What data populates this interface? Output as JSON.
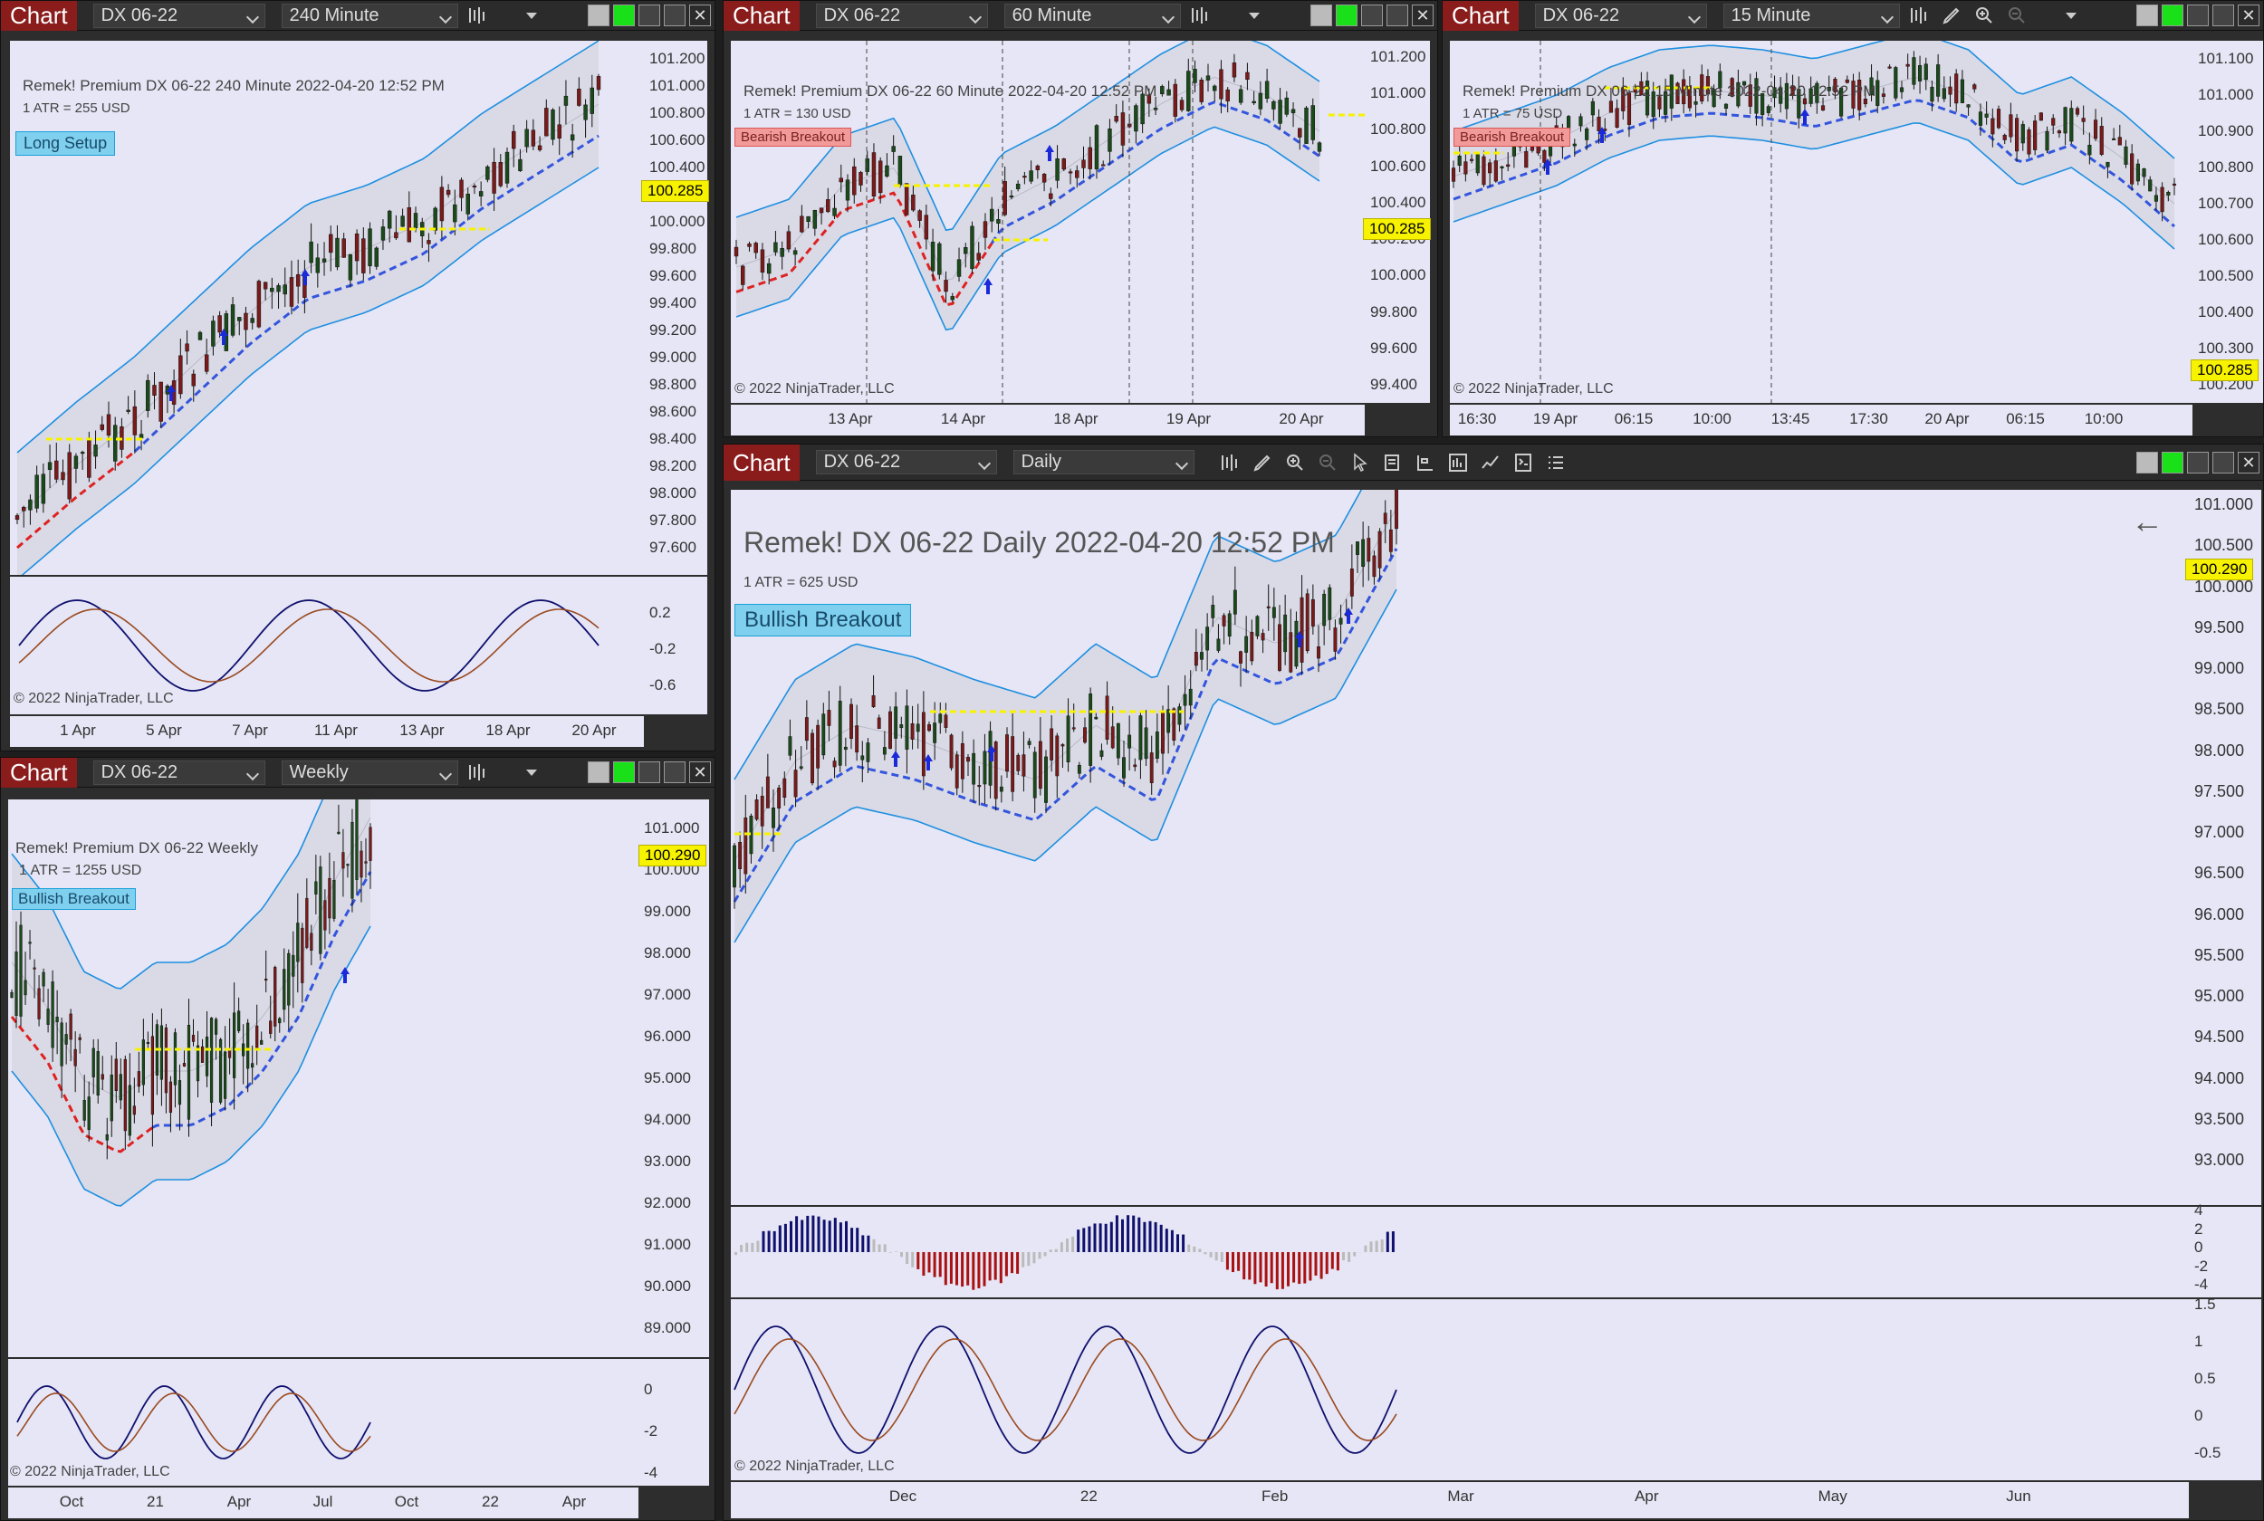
{
  "chart_label": "Chart",
  "copyright": "© 2022 NinjaTrader, LLC",
  "win240": {
    "instrument": "DX 06-22",
    "interval": "240 Minute",
    "header": "Remek!  Premium  DX 06-22  240 Minute  2022-04-20 12:52 PM",
    "atr": "1 ATR = 255 USD",
    "setup": "Long Setup",
    "price": "100.285",
    "yticks": [
      "101.200",
      "101.000",
      "100.800",
      "100.600",
      "100.400",
      "100.200",
      "100.000",
      "99.800",
      "99.600",
      "99.400",
      "99.200",
      "99.000",
      "98.800",
      "98.600",
      "98.400",
      "98.200",
      "98.000",
      "97.800",
      "97.600"
    ],
    "osc_ticks": [
      "0.2",
      "-0.2",
      "-0.6"
    ],
    "xticks": [
      "1 Apr",
      "5 Apr",
      "7 Apr",
      "11 Apr",
      "13 Apr",
      "18 Apr",
      "20 Apr"
    ]
  },
  "win60": {
    "instrument": "DX 06-22",
    "interval": "60 Minute",
    "header": "Remek!  Premium  DX 06-22  60 Minute  2022-04-20 12:52 PM",
    "atr": "1 ATR = 130 USD",
    "setup": "Bearish Breakout",
    "price": "100.285",
    "yticks": [
      "101.200",
      "101.000",
      "100.800",
      "100.600",
      "100.400",
      "100.200",
      "100.000",
      "99.800",
      "99.600",
      "99.400"
    ],
    "xticks": [
      "13 Apr",
      "14 Apr",
      "18 Apr",
      "19 Apr",
      "20 Apr"
    ]
  },
  "win15": {
    "instrument": "DX 06-22",
    "interval": "15 Minute",
    "header": "Remek!  Premium  DX 06-22  15 Minute  2022-04-20 12:52 PM",
    "atr": "1 ATR = 75 USD",
    "setup": "Bearish Breakout",
    "price": "100.285",
    "yticks": [
      "101.100",
      "101.000",
      "100.900",
      "100.800",
      "100.700",
      "100.600",
      "100.500",
      "100.400",
      "100.300",
      "100.200"
    ],
    "xticks": [
      "16:30",
      "19 Apr",
      "06:15",
      "10:00",
      "13:45",
      "17:30",
      "20 Apr",
      "06:15",
      "10:00"
    ]
  },
  "winW": {
    "instrument": "DX 06-22",
    "interval": "Weekly",
    "header": "Remek!  Premium  DX 06-22  Weekly",
    "atr": "1 ATR = 1255 USD",
    "setup": "Bullish Breakout",
    "price": "100.290",
    "yticks": [
      "101.000",
      "100.000",
      "99.000",
      "98.000",
      "97.000",
      "96.000",
      "95.000",
      "94.000",
      "93.000",
      "92.000",
      "91.000",
      "90.000",
      "89.000"
    ],
    "osc_ticks": [
      "0",
      "-2",
      "-4"
    ],
    "xticks": [
      "Oct",
      "21",
      "Apr",
      "Jul",
      "Oct",
      "22",
      "Apr"
    ]
  },
  "winD": {
    "instrument": "DX 06-22",
    "interval": "Daily",
    "header": "Remek!  DX 06-22  Daily  2022-04-20 12:52 PM",
    "atr": "1 ATR = 625 USD",
    "setup": "Bullish Breakout",
    "price": "100.290",
    "yticks": [
      "101.000",
      "100.500",
      "100.000",
      "99.500",
      "99.000",
      "98.500",
      "98.000",
      "97.500",
      "97.000",
      "96.500",
      "96.000",
      "95.500",
      "95.000",
      "94.500",
      "94.000",
      "93.500",
      "93.000"
    ],
    "hist_ticks": [
      "4",
      "2",
      "0",
      "-2",
      "-4"
    ],
    "osc_ticks": [
      "1.5",
      "1",
      "0.5",
      "0",
      "-0.5"
    ],
    "xticks": [
      "Dec",
      "22",
      "Feb",
      "Mar",
      "Apr",
      "May",
      "Jun"
    ]
  },
  "colors": {
    "bg": "#e6e6f6",
    "band": "#1e8fe0",
    "dash_blue": "#3355dd",
    "dash_red": "#dd2222",
    "yellow": "#f7f200",
    "bull": "#1a4a1a",
    "bear": "#7a1a1a",
    "navy": "#10106e",
    "brown": "#9a4a20"
  }
}
